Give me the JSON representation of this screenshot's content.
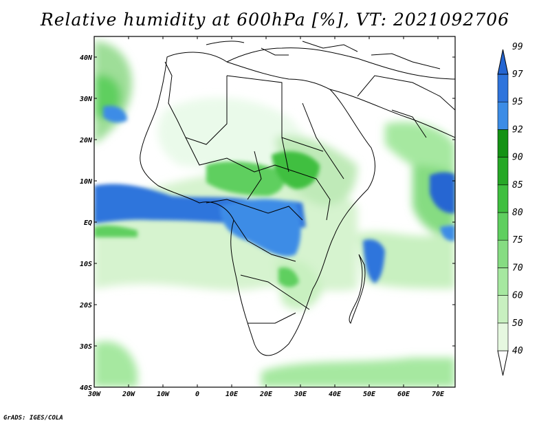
{
  "title": "Relative humidity at 600hPa [%], VT: 2021092706",
  "credit": "GrADS: IGES/COLA",
  "map": {
    "lon_range": [
      -30,
      75
    ],
    "lat_range": [
      -40,
      45
    ],
    "lon_ticks": [
      "30W",
      "20W",
      "10W",
      "0",
      "10E",
      "20E",
      "30E",
      "40E",
      "50E",
      "60E",
      "70E"
    ],
    "lat_ticks": [
      "40N",
      "30N",
      "20N",
      "10N",
      "EQ",
      "10S",
      "20S",
      "30S",
      "40S"
    ],
    "humid_zones": [
      {
        "name": "equatorial-band",
        "lon": [
          -30,
          35
        ],
        "lat": [
          -2,
          7
        ],
        "level": 97
      },
      {
        "name": "congo-basin",
        "lon": [
          8,
          32
        ],
        "lat": [
          -12,
          6
        ],
        "level": 95
      },
      {
        "name": "west-indian-ocean",
        "lon": [
          46,
          56
        ],
        "lat": [
          -15,
          -5
        ],
        "level": 97
      },
      {
        "name": "east-indian-ocean",
        "lon": [
          67,
          75
        ],
        "lat": [
          0,
          10
        ],
        "level": 97
      },
      {
        "name": "atlantic-nw",
        "lon": [
          -30,
          -20
        ],
        "lat": [
          25,
          40
        ],
        "level": 85
      },
      {
        "name": "arabian-sea",
        "lon": [
          55,
          75
        ],
        "lat": [
          15,
          25
        ],
        "level": 80
      }
    ]
  },
  "colorbar": {
    "labels": [
      "40",
      "50",
      "60",
      "70",
      "75",
      "80",
      "85",
      "90",
      "92",
      "95",
      "97",
      "99"
    ],
    "colors": [
      "#ffffff",
      "#e6f8e0",
      "#c8f0c0",
      "#a6e8a0",
      "#86dc82",
      "#5fcf5f",
      "#3fbf3f",
      "#26a826",
      "#149214",
      "#3c8ce6",
      "#2f74dc",
      "#2566d2"
    ]
  }
}
